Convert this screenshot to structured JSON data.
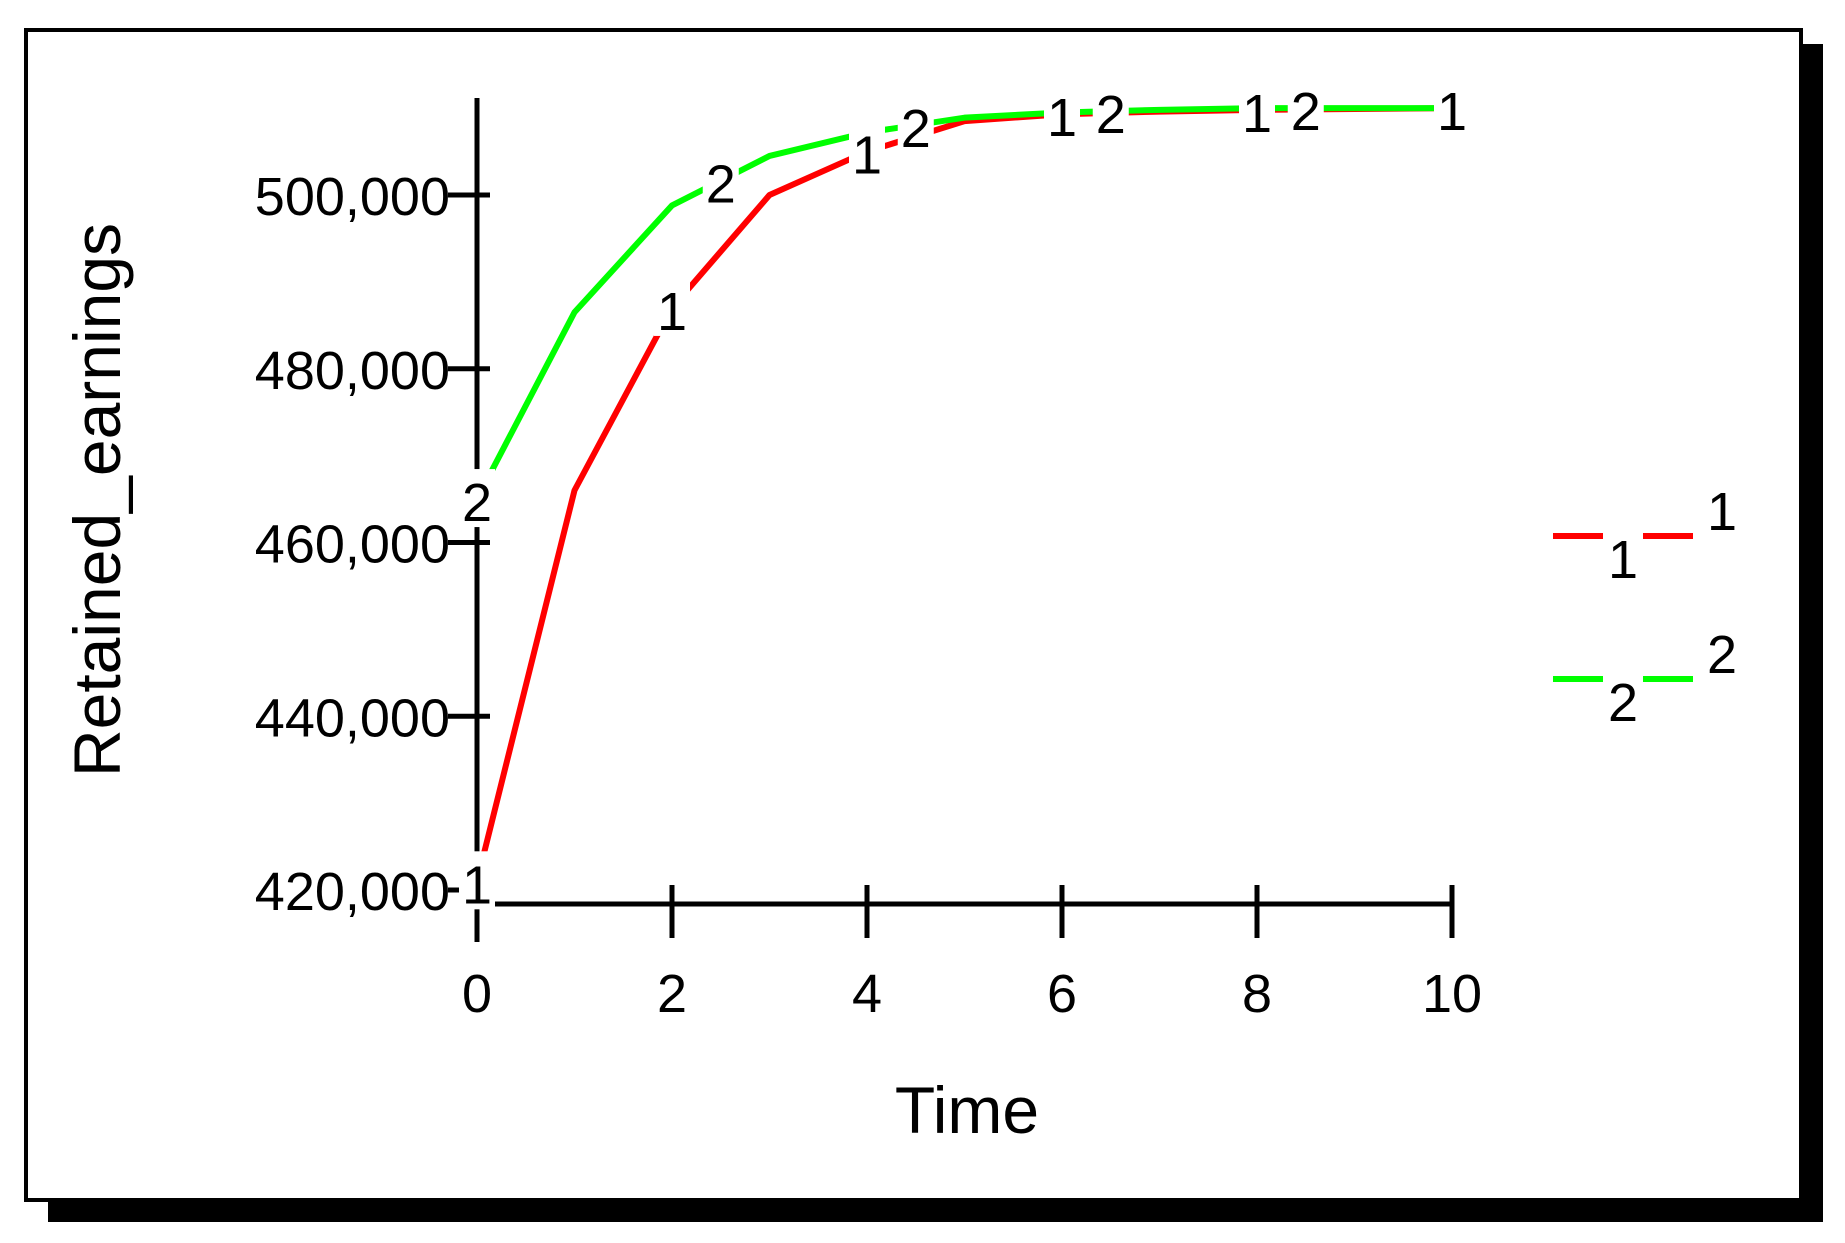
{
  "chart_data": {
    "type": "line",
    "title": "",
    "xlabel": "Time",
    "ylabel": "Retained_earnings",
    "xlim": [
      0,
      10
    ],
    "ylim": [
      418000,
      510000
    ],
    "x_ticks": [
      0,
      2,
      4,
      6,
      8,
      10
    ],
    "x_tick_labels": [
      "0",
      "2",
      "4",
      "6",
      "8",
      "10"
    ],
    "y_ticks": [
      420000,
      440000,
      460000,
      480000,
      500000
    ],
    "y_tick_labels": [
      "420,000",
      "440,000",
      "460,000",
      "480,000",
      "500,000"
    ],
    "x": [
      0,
      1,
      2,
      3,
      4,
      5,
      6,
      7,
      8,
      9,
      10
    ],
    "series": [
      {
        "name": "1",
        "marker": "1",
        "color": "#ff0000",
        "values": [
          421000,
          466000,
          487000,
          500000,
          505000,
          508500,
          509300,
          509600,
          509800,
          509900,
          510000
        ]
      },
      {
        "name": "2",
        "marker": "2",
        "color": "#00ff00",
        "values": [
          465000,
          486500,
          498800,
          504500,
          507200,
          508900,
          509500,
          509800,
          510000,
          510000,
          510000
        ]
      }
    ],
    "grid": false,
    "legend": "right"
  }
}
